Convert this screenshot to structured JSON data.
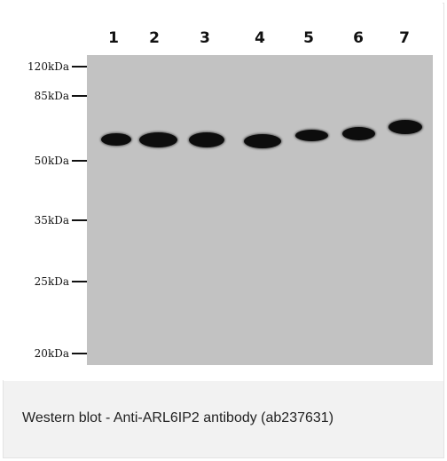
{
  "figure": {
    "lanes": [
      "1",
      "2",
      "3",
      "4",
      "5",
      "6",
      "7"
    ],
    "markers": [
      "120kDa",
      "85kDa",
      "50kDa",
      "35kDa",
      "25kDa",
      "20kDa"
    ]
  },
  "caption": {
    "text": "Western blot - Anti-ARL6IP2 antibody (ab237631)"
  }
}
